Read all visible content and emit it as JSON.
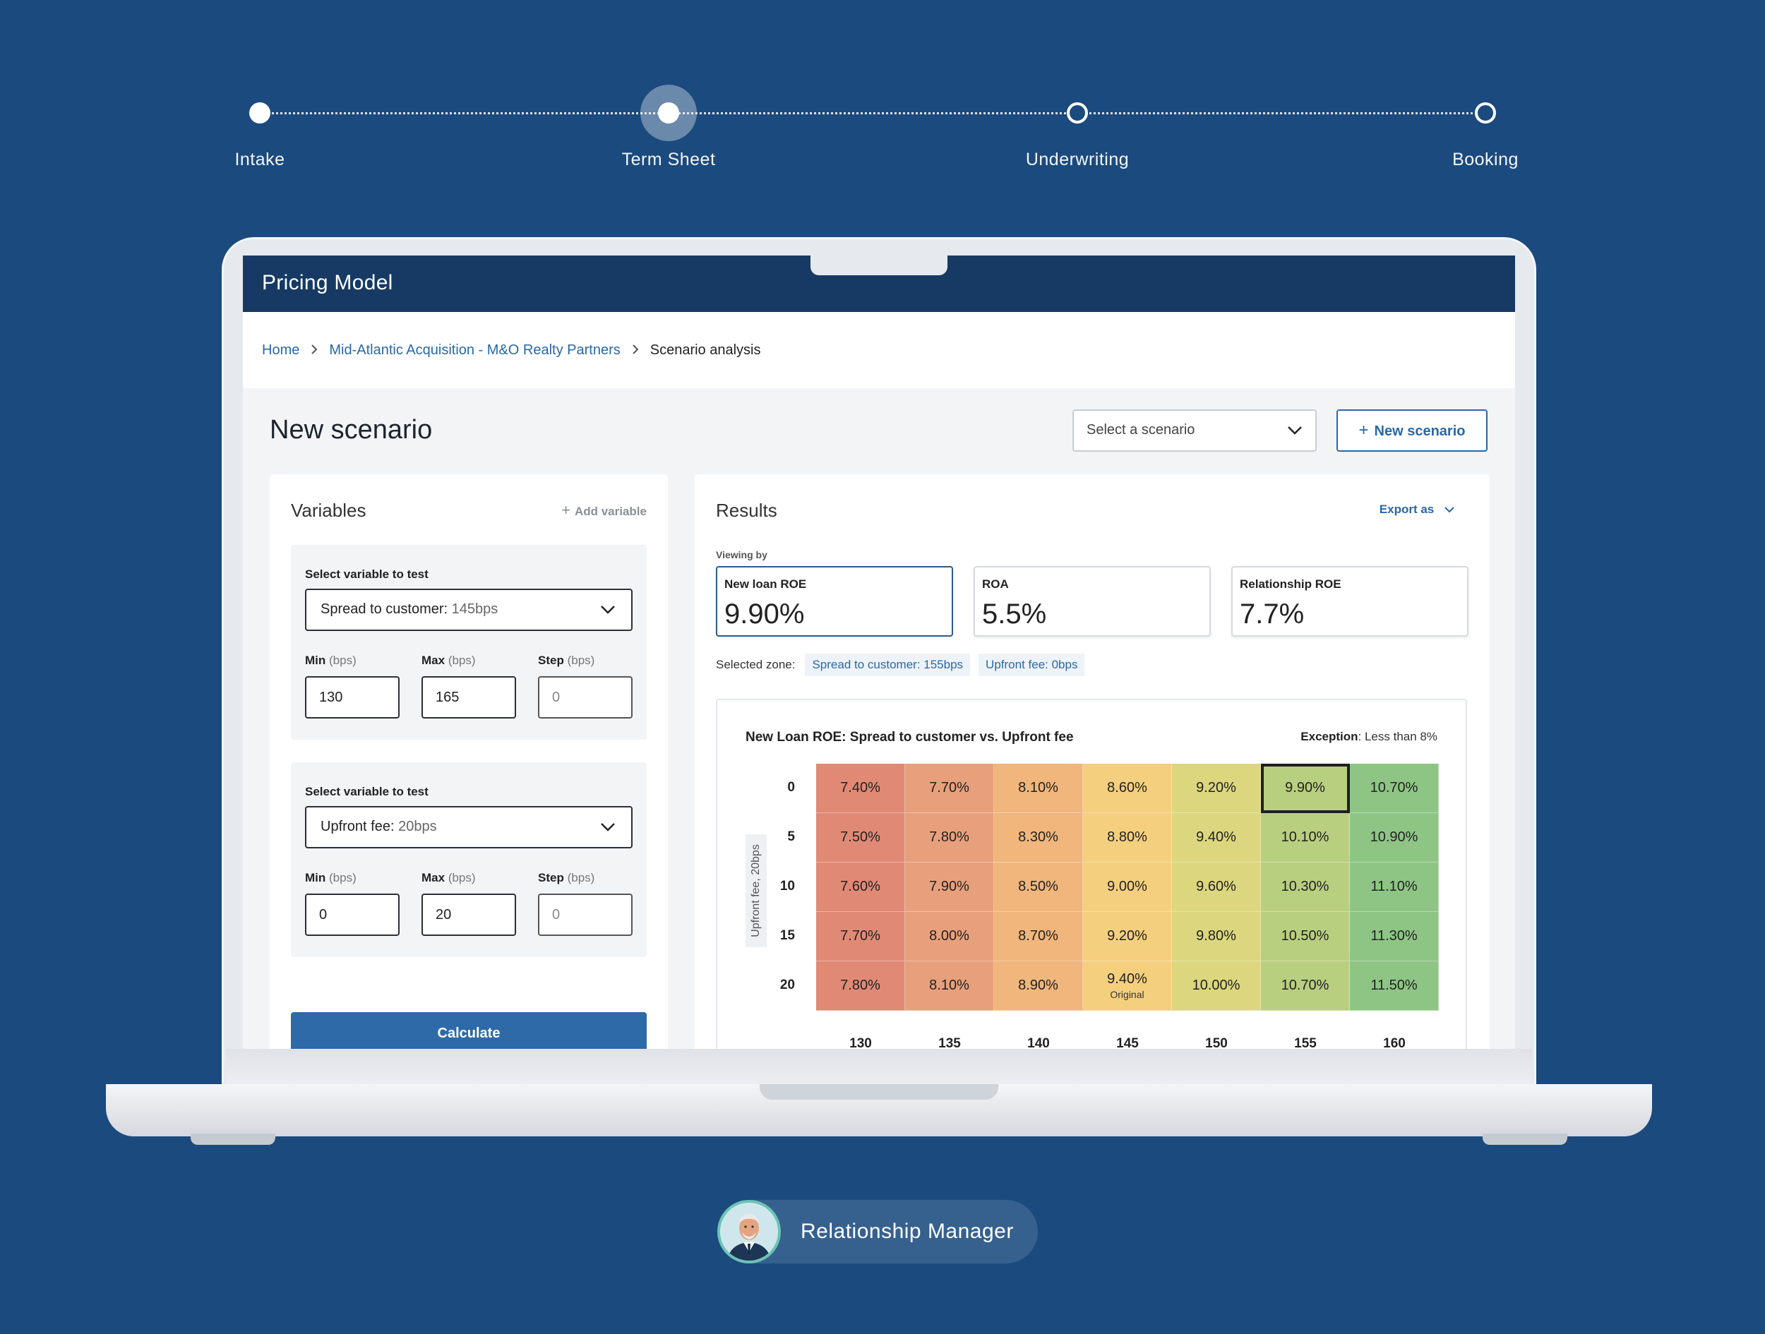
{
  "stepper": {
    "steps": [
      {
        "label": "Intake",
        "state": "done"
      },
      {
        "label": "Term Sheet",
        "state": "current"
      },
      {
        "label": "Underwriting",
        "state": "upcoming"
      },
      {
        "label": "Booking",
        "state": "upcoming"
      }
    ]
  },
  "app": {
    "title": "Pricing Model",
    "breadcrumb": {
      "home": "Home",
      "deal": "Mid-Atlantic Acquisition - M&O Realty Partners",
      "current": "Scenario analysis"
    },
    "page_title": "New scenario",
    "scenario_select_placeholder": "Select a scenario",
    "new_scenario_label": "New scenario"
  },
  "variables": {
    "title": "Variables",
    "add_label": "Add variable",
    "cards": [
      {
        "label": "Select variable to test",
        "variable_name": "Spread to customer:",
        "variable_value": "145bps",
        "min_label": "Min",
        "max_label": "Max",
        "step_label": "Step",
        "unit": "(bps)",
        "min": "130",
        "max": "165",
        "step_placeholder": "0"
      },
      {
        "label": "Select variable to test",
        "variable_name": "Upfront fee:",
        "variable_value": "20bps",
        "min_label": "Min",
        "max_label": "Max",
        "step_label": "Step",
        "unit": "(bps)",
        "min": "0",
        "max": "20",
        "step_placeholder": "0"
      }
    ],
    "calculate_label": "Calculate"
  },
  "results": {
    "title": "Results",
    "export_label": "Export as",
    "viewing_by": "Viewing by",
    "metrics": [
      {
        "label": "New loan ROE",
        "value": "9.90%",
        "active": true
      },
      {
        "label": "ROA",
        "value": "5.5%",
        "active": false
      },
      {
        "label": "Relationship ROE",
        "value": "7.7%",
        "active": false
      }
    ],
    "selected_zone_label": "Selected zone:",
    "zone_tags": [
      "Spread to customer: 155bps",
      "Upfront fee: 0bps"
    ]
  },
  "chart_data": {
    "type": "heatmap",
    "title": "New Loan ROE: Spread to customer vs. Upfront fee",
    "exception_label": "Exception",
    "exception_text": ": Less than 8%",
    "ylabel": "Upfront fee, 20bps",
    "xlabel": "",
    "x": [
      "130",
      "135",
      "140",
      "145",
      "150",
      "155",
      "160"
    ],
    "y": [
      "0",
      "5",
      "10",
      "15",
      "20"
    ],
    "values": [
      [
        7.4,
        7.7,
        8.1,
        8.6,
        9.2,
        9.9,
        10.7
      ],
      [
        7.5,
        7.8,
        8.3,
        8.8,
        9.4,
        10.1,
        10.9
      ],
      [
        7.6,
        7.9,
        8.5,
        9.0,
        9.6,
        10.3,
        11.1
      ],
      [
        7.7,
        8.0,
        8.7,
        9.2,
        9.8,
        10.5,
        11.3
      ],
      [
        7.8,
        8.1,
        8.9,
        9.4,
        10.0,
        10.7,
        11.5
      ]
    ],
    "value_labels": [
      [
        "7.40%",
        "7.70%",
        "8.10%",
        "8.60%",
        "9.20%",
        "9.90%",
        "10.70%"
      ],
      [
        "7.50%",
        "7.80%",
        "8.30%",
        "8.80%",
        "9.40%",
        "10.10%",
        "10.90%"
      ],
      [
        "7.60%",
        "7.90%",
        "8.50%",
        "9.00%",
        "9.60%",
        "10.30%",
        "11.10%"
      ],
      [
        "7.70%",
        "8.00%",
        "8.70%",
        "9.20%",
        "9.80%",
        "10.50%",
        "11.30%"
      ],
      [
        "7.80%",
        "8.10%",
        "8.90%",
        "9.40%",
        "10.00%",
        "10.70%",
        "11.50%"
      ]
    ],
    "selected_cell": {
      "x": "155",
      "y": "0"
    },
    "original_cell": {
      "x": "145",
      "y": "20",
      "note": "Original"
    },
    "column_colors": [
      "#e08a76",
      "#e8a07c",
      "#f0b67c",
      "#f4cf7e",
      "#dcd77e",
      "#b9cf80",
      "#8ec585"
    ]
  },
  "role": {
    "label": "Relationship Manager"
  }
}
